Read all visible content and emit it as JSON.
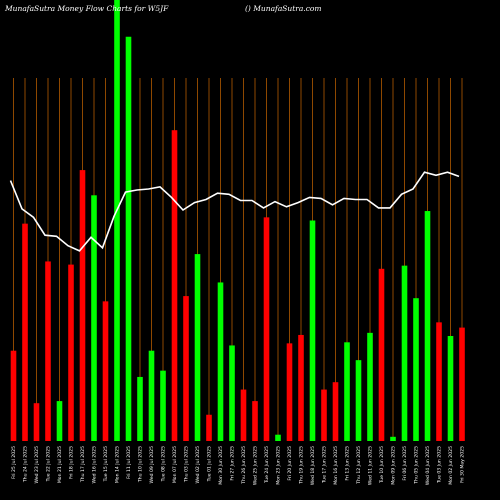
{
  "header": {
    "left": "MunafaSutra  Money Flow  Charts for W5JF",
    "right": "() MunafaSutra.com"
  },
  "chart_data": {
    "type": "bar",
    "x_labels": [
      "Fri 25 Jul 2025",
      "Thu 24 Jul 2025",
      "Wed 23 Jul 2025",
      "Tue 22 Jul 2025",
      "Mon 21 Jul 2025",
      "Fri 18 Jul 2025",
      "Thu 17 Jul 2025",
      "Wed 16 Jul 2025",
      "Tue 15 Jul 2025",
      "Mon 14 Jul 2025",
      "Fri 11 Jul 2025",
      "Thu 10 Jul 2025",
      "Wed 09 Jul 2025",
      "Tue 08 Jul 2025",
      "Mon 07 Jul 2025",
      "Thu 03 Jul 2025",
      "Wed 02 Jul 2025",
      "Tue 01 Jul 2025",
      "Mon 30 Jun 2025",
      "Fri 27 Jun 2025",
      "Thu 26 Jun 2025",
      "Wed 25 Jun 2025",
      "Tue 24 Jun 2025",
      "Mon 23 Jun 2025",
      "Fri 20 Jun 2025",
      "Thu 19 Jun 2025",
      "Wed 18 Jun 2025",
      "Tue 17 Jun 2025",
      "Mon 16 Jun 2025",
      "Fri 13 Jun 2025",
      "Thu 12 Jun 2025",
      "Wed 11 Jun 2025",
      "Tue 10 Jun 2025",
      "Mon 09 Jun 2025",
      "Fri 06 Jun 2025",
      "Thu 05 Jun 2025",
      "Wed 04 Jun 2025",
      "Tue 03 Jun 2025",
      "Mon 02 Jun 2025",
      "Fri 30 May 2025"
    ],
    "bars": [
      {
        "value": 86,
        "color": "red"
      },
      {
        "value": 207,
        "color": "red"
      },
      {
        "value": 36,
        "color": "red"
      },
      {
        "value": 171,
        "color": "red"
      },
      {
        "value": 38,
        "color": "green"
      },
      {
        "value": 168,
        "color": "red"
      },
      {
        "value": 258,
        "color": "red"
      },
      {
        "value": 234,
        "color": "green"
      },
      {
        "value": 133,
        "color": "red"
      },
      {
        "value": 420,
        "color": "green"
      },
      {
        "value": 385,
        "color": "green"
      },
      {
        "value": 61,
        "color": "green"
      },
      {
        "value": 86,
        "color": "green"
      },
      {
        "value": 67,
        "color": "green"
      },
      {
        "value": 296,
        "color": "red"
      },
      {
        "value": 138,
        "color": "red"
      },
      {
        "value": 178,
        "color": "green"
      },
      {
        "value": 25,
        "color": "red"
      },
      {
        "value": 151,
        "color": "green"
      },
      {
        "value": 91,
        "color": "green"
      },
      {
        "value": 49,
        "color": "red"
      },
      {
        "value": 38,
        "color": "red"
      },
      {
        "value": 213,
        "color": "red"
      },
      {
        "value": 6,
        "color": "green"
      },
      {
        "value": 93,
        "color": "red"
      },
      {
        "value": 101,
        "color": "red"
      },
      {
        "value": 210,
        "color": "green"
      },
      {
        "value": 49,
        "color": "red"
      },
      {
        "value": 56,
        "color": "red"
      },
      {
        "value": 94,
        "color": "green"
      },
      {
        "value": 77,
        "color": "green"
      },
      {
        "value": 103,
        "color": "green"
      },
      {
        "value": 164,
        "color": "red"
      },
      {
        "value": 4,
        "color": "green"
      },
      {
        "value": 167,
        "color": "green"
      },
      {
        "value": 136,
        "color": "green"
      },
      {
        "value": 219,
        "color": "green"
      },
      {
        "value": 113,
        "color": "red"
      },
      {
        "value": 100,
        "color": "green"
      },
      {
        "value": 108,
        "color": "red"
      }
    ],
    "line": [
      248,
      221,
      213,
      196,
      195,
      186,
      181,
      194,
      184,
      214,
      237,
      239,
      240,
      242,
      232,
      220,
      227,
      230,
      236,
      235,
      229,
      229,
      222,
      228,
      223,
      227,
      232,
      231,
      225,
      231,
      230,
      230,
      222,
      222,
      235,
      240,
      256,
      253,
      256,
      252
    ],
    "ylim": [
      0,
      420
    ],
    "grid": "vertical",
    "colors": {
      "background": "#000000",
      "red": "#ff0000",
      "green": "#00ff00",
      "line": "#ffffff",
      "grid": "#b35a00"
    }
  }
}
